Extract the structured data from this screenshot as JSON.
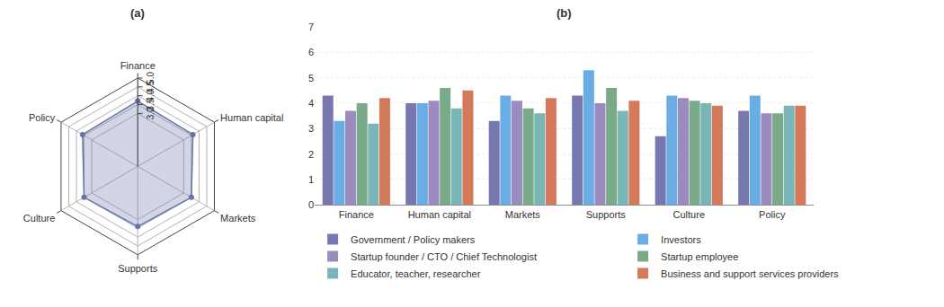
{
  "chart_data": [
    {
      "type": "radar",
      "title": "(a)",
      "categories": [
        "Finance",
        "Human capital",
        "Markets",
        "Supports",
        "Culture",
        "Policy"
      ],
      "values": [
        3.7,
        3.6,
        3.5,
        3.4,
        3.5,
        3.6
      ],
      "color": "#6674a8",
      "ylim": [
        0,
        5
      ],
      "yticks": [
        {
          "value": 3.0,
          "label": "3.0"
        },
        {
          "value": 3.5,
          "label": "3.5"
        },
        {
          "value": 4.0,
          "label": "4.0"
        },
        {
          "value": 4.5,
          "label": "4.5"
        },
        {
          "value": 5.0,
          "label": "5.0"
        }
      ],
      "grid": true
    },
    {
      "type": "bar",
      "title": "(b)",
      "categories": [
        "Finance",
        "Human capital",
        "Markets",
        "Supports",
        "Culture",
        "Policy"
      ],
      "series": [
        {
          "name": "Government / Policy makers",
          "color": "#7878b0",
          "values": [
            4.3,
            4.0,
            3.3,
            4.3,
            2.7,
            3.7
          ]
        },
        {
          "name": "Investors",
          "color": "#6aace4",
          "values": [
            3.3,
            4.0,
            4.3,
            5.3,
            4.3,
            4.3
          ]
        },
        {
          "name": "Startup founder / CTO / Chief Technologist",
          "color": "#9b8bbf",
          "values": [
            3.7,
            4.1,
            4.1,
            4.0,
            4.2,
            3.6
          ]
        },
        {
          "name": "Startup employee",
          "color": "#7aab88",
          "values": [
            4.0,
            4.6,
            3.8,
            4.6,
            4.1,
            3.6
          ]
        },
        {
          "name": "Educator, teacher, researcher",
          "color": "#7ab5b8",
          "values": [
            3.2,
            3.8,
            3.6,
            3.7,
            4.0,
            3.9
          ]
        },
        {
          "name": "Business and support services providers",
          "color": "#d4795a",
          "values": [
            4.2,
            4.5,
            4.2,
            4.1,
            3.9,
            3.9
          ]
        }
      ],
      "ylim": [
        0,
        7
      ],
      "yticks": [
        0,
        1,
        2,
        3,
        4,
        5,
        6,
        7
      ],
      "grid": true,
      "legend": "bottom"
    }
  ]
}
